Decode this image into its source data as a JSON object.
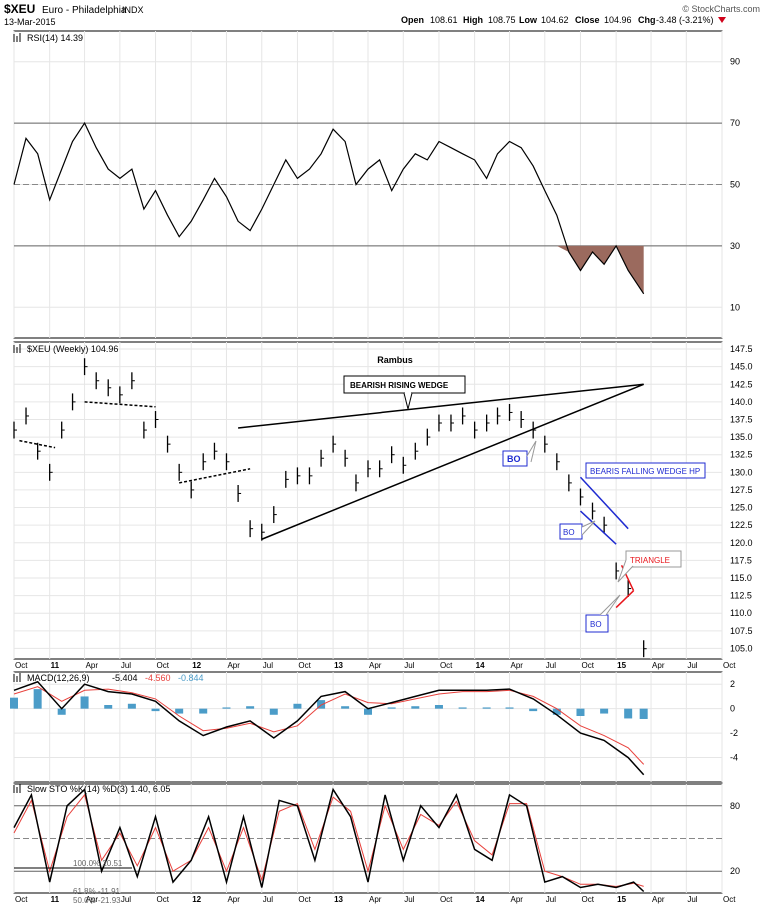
{
  "header": {
    "symbol": "$XEU",
    "name": "Euro - Philadelphia",
    "exchange": "INDX",
    "date": "13-Mar-2015",
    "open_label": "Open",
    "open": "108.61",
    "high_label": "High",
    "high": "108.75",
    "low_label": "Low",
    "low": "104.62",
    "close_label": "Close",
    "close": "104.96",
    "chg_label": "Chg",
    "chg": "-3.48 (-3.21%)",
    "watermark": "© StockCharts.com"
  },
  "colors": {
    "price_bar": "#000000",
    "rsi_fill": "#9b6a5e",
    "macd_hist": "#4b9cc8",
    "signal": "#e8413c",
    "annotation_blue": "#1f2bd1",
    "annotation_red": "#e8151b",
    "grid": "#e6e6e6"
  },
  "x_axis": {
    "labels": [
      "Oct",
      "11",
      "Apr",
      "Jul",
      "Oct",
      "12",
      "Apr",
      "Jul",
      "Oct",
      "13",
      "Apr",
      "Jul",
      "Oct",
      "14",
      "Apr",
      "Jul",
      "Oct",
      "15",
      "Apr",
      "Jul",
      "Oct"
    ],
    "bold_labels": [
      "11",
      "12",
      "13",
      "14",
      "15"
    ],
    "start": "2010-10-01",
    "end": "2015-10-01"
  },
  "chart_data": [
    {
      "type": "line",
      "panel": "rsi",
      "legend": "RSI(14) 14.39",
      "ylim": [
        0,
        100
      ],
      "y_ticks": [
        90,
        70,
        50,
        30,
        10
      ],
      "reference_lines": [
        70,
        50,
        30
      ],
      "series": [
        {
          "name": "RSI(14)",
          "x": [
            "2010-10-01",
            "2010-11-01",
            "2010-12-01",
            "2011-01-01",
            "2011-02-01",
            "2011-03-01",
            "2011-04-01",
            "2011-05-01",
            "2011-06-01",
            "2011-07-01",
            "2011-08-01",
            "2011-09-01",
            "2011-10-01",
            "2011-11-01",
            "2011-12-01",
            "2012-01-01",
            "2012-02-01",
            "2012-03-01",
            "2012-04-01",
            "2012-05-01",
            "2012-06-01",
            "2012-07-01",
            "2012-08-01",
            "2012-09-01",
            "2012-10-01",
            "2012-11-01",
            "2012-12-01",
            "2013-01-01",
            "2013-02-01",
            "2013-03-01",
            "2013-04-01",
            "2013-05-01",
            "2013-06-01",
            "2013-07-01",
            "2013-08-01",
            "2013-09-01",
            "2013-10-01",
            "2013-11-01",
            "2013-12-01",
            "2014-01-01",
            "2014-02-01",
            "2014-03-01",
            "2014-04-01",
            "2014-05-01",
            "2014-06-01",
            "2014-07-01",
            "2014-08-01",
            "2014-09-01",
            "2014-10-01",
            "2014-11-01",
            "2014-12-01",
            "2015-01-01",
            "2015-02-01",
            "2015-03-13"
          ],
          "values": [
            50,
            65,
            60,
            45,
            55,
            64,
            70,
            62,
            55,
            52,
            55,
            42,
            48,
            40,
            33,
            38,
            45,
            52,
            46,
            38,
            35,
            42,
            50,
            58,
            52,
            55,
            60,
            68,
            64,
            50,
            55,
            58,
            48,
            55,
            60,
            58,
            64,
            62,
            60,
            58,
            52,
            60,
            64,
            62,
            56,
            48,
            40,
            28,
            22,
            28,
            24,
            30,
            22,
            14.39
          ]
        }
      ]
    },
    {
      "type": "bar",
      "panel": "price",
      "legend": "$XEU (Weekly) 104.96",
      "title": "Rambus",
      "ylim": [
        103.5,
        148.5
      ],
      "y_ticks": [
        147.5,
        145.0,
        142.5,
        140.0,
        137.5,
        135.0,
        132.5,
        130.0,
        127.5,
        125.0,
        122.5,
        120.0,
        117.5,
        115.0,
        112.5,
        110.0,
        107.5,
        105.0
      ],
      "series": [
        {
          "name": "$XEU (Weekly)",
          "x": [
            "2010-10-01",
            "2010-11-01",
            "2010-12-01",
            "2011-01-01",
            "2011-02-01",
            "2011-03-01",
            "2011-04-01",
            "2011-05-01",
            "2011-06-01",
            "2011-07-01",
            "2011-08-01",
            "2011-09-01",
            "2011-10-01",
            "2011-11-01",
            "2011-12-01",
            "2012-01-01",
            "2012-02-01",
            "2012-03-01",
            "2012-04-01",
            "2012-05-01",
            "2012-06-01",
            "2012-07-01",
            "2012-08-01",
            "2012-09-01",
            "2012-10-01",
            "2012-11-01",
            "2012-12-01",
            "2013-01-01",
            "2013-02-01",
            "2013-03-01",
            "2013-04-01",
            "2013-05-01",
            "2013-06-01",
            "2013-07-01",
            "2013-08-01",
            "2013-09-01",
            "2013-10-01",
            "2013-11-01",
            "2013-12-01",
            "2014-01-01",
            "2014-02-01",
            "2014-03-01",
            "2014-04-01",
            "2014-05-01",
            "2014-06-01",
            "2014-07-01",
            "2014-08-01",
            "2014-09-01",
            "2014-10-01",
            "2014-11-01",
            "2014-12-01",
            "2015-01-01",
            "2015-02-01",
            "2015-03-13"
          ],
          "values": [
            136.0,
            138.0,
            133.0,
            130.0,
            136.0,
            140.0,
            145.0,
            143.0,
            142.0,
            141.0,
            143.0,
            136.0,
            137.5,
            134.0,
            130.0,
            127.5,
            131.5,
            133.0,
            131.5,
            127.0,
            122.0,
            121.5,
            124.0,
            129.0,
            129.5,
            129.5,
            132.0,
            134.0,
            132.0,
            128.5,
            130.5,
            130.5,
            132.5,
            131.0,
            133.0,
            135.0,
            137.0,
            137.0,
            138.0,
            136.0,
            137.0,
            138.0,
            138.5,
            137.5,
            136.0,
            134.0,
            131.5,
            128.5,
            126.5,
            124.5,
            122.5,
            116.0,
            113.5,
            104.96
          ]
        }
      ],
      "annotations": [
        "BEARISH RISING WEDGE",
        "BO",
        "BEARIS FALLING WEDGE HP",
        "BO",
        "TRIANGLE",
        "BO"
      ]
    },
    {
      "type": "line",
      "panel": "macd",
      "legend_name": "MACD(12,26,9)",
      "legend_values": [
        "-5.404",
        "-4.560",
        "-0.844"
      ],
      "ylim": [
        -6,
        3
      ],
      "y_ticks": [
        2,
        0,
        -2,
        -4
      ],
      "series": [
        {
          "name": "MACD(12,26,9)",
          "x": [
            "2010-10-01",
            "2010-12-01",
            "2011-02-01",
            "2011-04-01",
            "2011-06-01",
            "2011-08-01",
            "2011-10-01",
            "2011-12-01",
            "2012-02-01",
            "2012-04-01",
            "2012-06-01",
            "2012-08-01",
            "2012-10-01",
            "2012-12-01",
            "2013-02-01",
            "2013-04-01",
            "2013-06-01",
            "2013-08-01",
            "2013-10-01",
            "2013-12-01",
            "2014-02-01",
            "2014-04-01",
            "2014-06-01",
            "2014-08-01",
            "2014-10-01",
            "2014-12-01",
            "2015-02-01",
            "2015-03-13"
          ],
          "values": [
            1.5,
            2.2,
            0.0,
            2.0,
            1.4,
            1.2,
            0.6,
            -1.0,
            -2.2,
            -1.5,
            -1.0,
            -2.4,
            -1.0,
            1.0,
            1.4,
            0.0,
            0.5,
            1.0,
            1.5,
            1.5,
            1.5,
            1.6,
            0.8,
            -0.5,
            -2.0,
            -2.6,
            -4.0,
            -5.404
          ]
        },
        {
          "name": "Signal",
          "x": [
            "2010-10-01",
            "2010-12-01",
            "2011-02-01",
            "2011-04-01",
            "2011-06-01",
            "2011-08-01",
            "2011-10-01",
            "2011-12-01",
            "2012-02-01",
            "2012-04-01",
            "2012-06-01",
            "2012-08-01",
            "2012-10-01",
            "2012-12-01",
            "2013-02-01",
            "2013-04-01",
            "2013-06-01",
            "2013-08-01",
            "2013-10-01",
            "2013-12-01",
            "2014-02-01",
            "2014-04-01",
            "2014-06-01",
            "2014-08-01",
            "2014-10-01",
            "2014-12-01",
            "2015-02-01",
            "2015-03-13"
          ],
          "values": [
            1.2,
            1.8,
            0.6,
            1.5,
            1.6,
            1.3,
            0.8,
            -0.6,
            -1.8,
            -1.6,
            -1.2,
            -1.9,
            -1.4,
            0.3,
            1.2,
            0.5,
            0.4,
            0.8,
            1.2,
            1.4,
            1.4,
            1.5,
            1.0,
            0.0,
            -1.4,
            -2.2,
            -3.2,
            -4.56
          ]
        }
      ],
      "histogram": {
        "x": [
          "2010-10-01",
          "2010-12-01",
          "2011-02-01",
          "2011-04-01",
          "2011-06-01",
          "2011-08-01",
          "2011-10-01",
          "2011-12-01",
          "2012-02-01",
          "2012-04-01",
          "2012-06-01",
          "2012-08-01",
          "2012-10-01",
          "2012-12-01",
          "2013-02-01",
          "2013-04-01",
          "2013-06-01",
          "2013-08-01",
          "2013-10-01",
          "2013-12-01",
          "2014-02-01",
          "2014-04-01",
          "2014-06-01",
          "2014-08-01",
          "2014-10-01",
          "2014-12-01",
          "2015-02-01",
          "2015-03-13"
        ],
        "values": [
          0.9,
          1.6,
          -0.5,
          1.0,
          0.3,
          0.4,
          -0.2,
          -0.4,
          -0.4,
          0.1,
          0.2,
          -0.5,
          0.4,
          0.7,
          0.2,
          -0.5,
          0.1,
          0.2,
          0.3,
          0.1,
          0.1,
          0.1,
          -0.2,
          -0.5,
          -0.6,
          -0.4,
          -0.8,
          -0.844
        ]
      }
    },
    {
      "type": "line",
      "panel": "stochastic",
      "legend": "Slow STO %K(14) %D(3) 1.40, 6.05",
      "ylim": [
        0,
        100
      ],
      "y_ticks": [
        80,
        20
      ],
      "reference_lines": [
        80,
        50,
        20
      ],
      "fib_labels": [
        "100.0% 20.51",
        "61.8% -11.91",
        "50.0% -21.93"
      ],
      "series": [
        {
          "name": "%K(14)",
          "x": [
            "2010-10-01",
            "2010-11-15",
            "2011-01-01",
            "2011-02-15",
            "2011-04-01",
            "2011-05-15",
            "2011-07-01",
            "2011-08-15",
            "2011-10-01",
            "2011-11-15",
            "2012-01-01",
            "2012-02-15",
            "2012-04-01",
            "2012-05-15",
            "2012-07-01",
            "2012-08-15",
            "2012-10-01",
            "2012-11-15",
            "2013-01-01",
            "2013-02-15",
            "2013-04-01",
            "2013-05-15",
            "2013-07-01",
            "2013-08-15",
            "2013-10-01",
            "2013-11-15",
            "2014-01-01",
            "2014-02-15",
            "2014-04-01",
            "2014-05-15",
            "2014-07-01",
            "2014-08-15",
            "2014-10-01",
            "2014-11-15",
            "2015-01-01",
            "2015-02-15",
            "2015-03-13"
          ],
          "values": [
            60,
            90,
            10,
            80,
            95,
            20,
            60,
            15,
            70,
            10,
            30,
            70,
            10,
            70,
            5,
            85,
            80,
            30,
            95,
            70,
            10,
            90,
            30,
            80,
            60,
            90,
            40,
            30,
            90,
            80,
            10,
            15,
            5,
            8,
            5,
            10,
            1.4
          ]
        },
        {
          "name": "%D(3)",
          "x": [
            "2010-10-01",
            "2010-11-15",
            "2011-01-01",
            "2011-02-15",
            "2011-04-01",
            "2011-05-15",
            "2011-07-01",
            "2011-08-15",
            "2011-10-01",
            "2011-11-15",
            "2012-01-01",
            "2012-02-15",
            "2012-04-01",
            "2012-05-15",
            "2012-07-01",
            "2012-08-15",
            "2012-10-01",
            "2012-11-15",
            "2013-01-01",
            "2013-02-15",
            "2013-04-01",
            "2013-05-15",
            "2013-07-01",
            "2013-08-15",
            "2013-10-01",
            "2013-11-15",
            "2014-01-01",
            "2014-02-15",
            "2014-04-01",
            "2014-05-15",
            "2014-07-01",
            "2014-08-15",
            "2014-10-01",
            "2014-11-15",
            "2015-01-01",
            "2015-02-15",
            "2015-03-13"
          ],
          "values": [
            55,
            85,
            20,
            70,
            90,
            30,
            55,
            25,
            60,
            20,
            30,
            60,
            20,
            60,
            12,
            75,
            82,
            40,
            88,
            75,
            20,
            80,
            40,
            72,
            62,
            84,
            48,
            35,
            82,
            82,
            20,
            15,
            8,
            8,
            6,
            9,
            6.05
          ]
        }
      ]
    }
  ],
  "annotations": {
    "rising_wedge": "BEARISH RISING WEDGE",
    "bo": "BO",
    "falling_wedge": "BEARIS FALLING WEDGE HP",
    "triangle": "TRIANGLE"
  }
}
